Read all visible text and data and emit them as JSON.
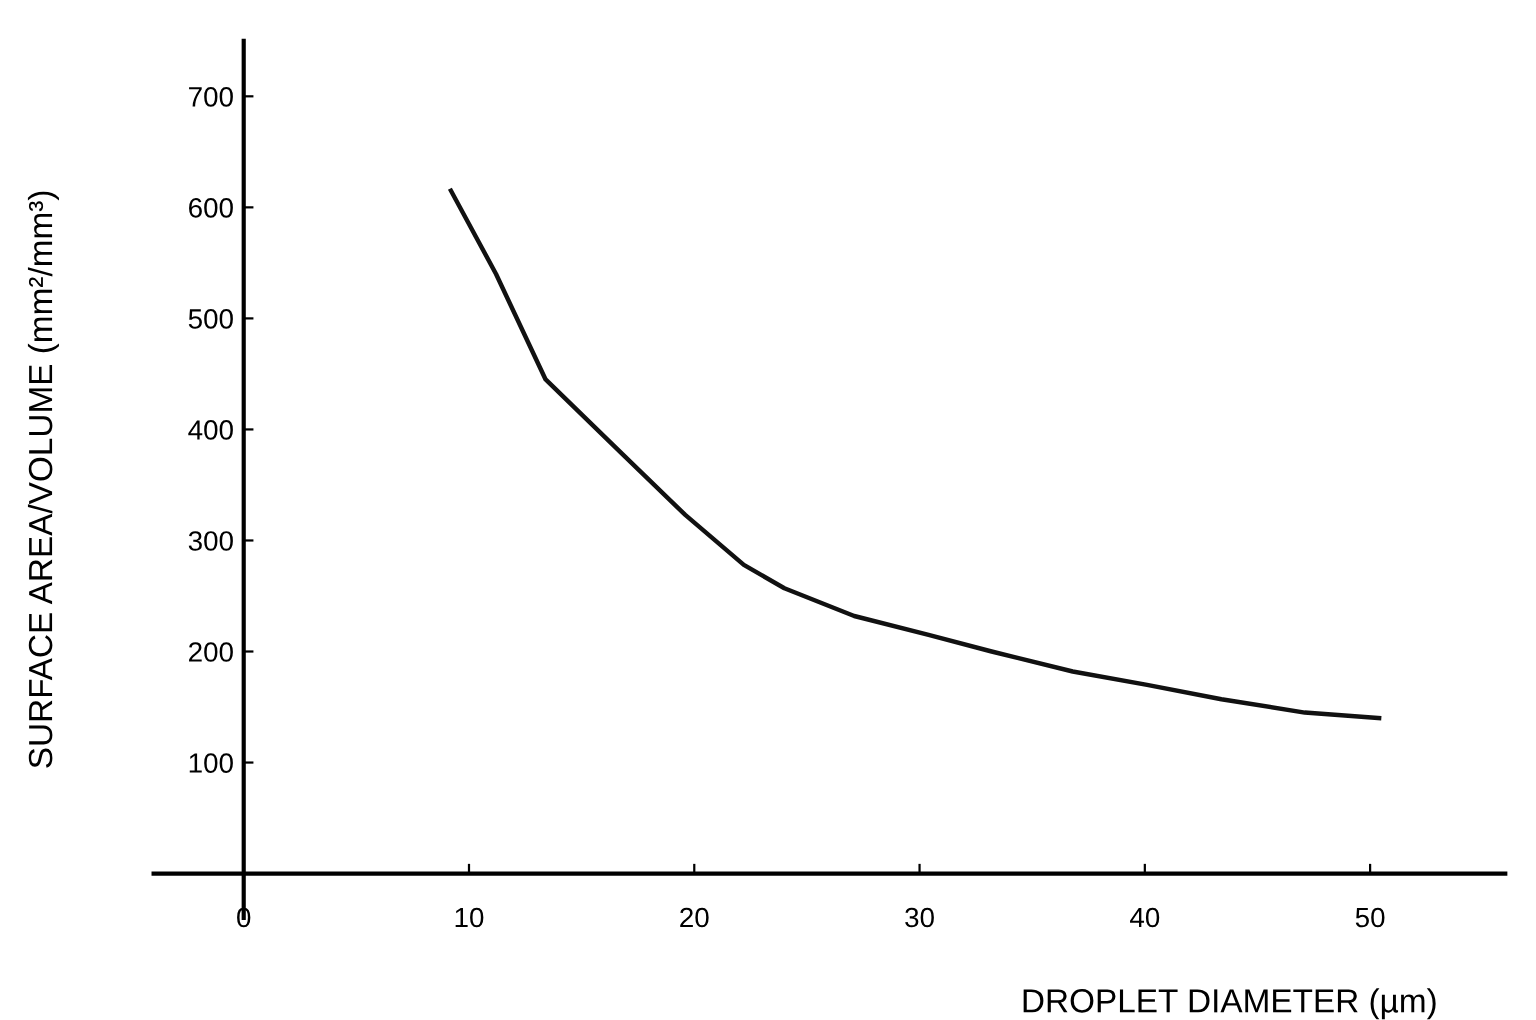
{
  "chart_data": {
    "type": "line",
    "xlabel": "DROPLET DIAMETER (µm)",
    "ylabel": "SURFACE AREA/VOLUME (mm²/mm³)",
    "x": [
      9.2,
      11.2,
      13.4,
      16.8,
      19.6,
      22.2,
      24,
      27.1,
      30.4,
      33.2,
      36.8,
      40.1,
      43.4,
      47.1,
      50.4
    ],
    "series": [
      {
        "color": "#111111",
        "values": [
          615,
          540,
          445,
          378,
          323,
          278,
          257,
          232,
          215,
          200,
          182,
          170,
          157,
          145,
          140
        ]
      }
    ],
    "xlim": [
      -4,
      56
    ],
    "ylim": [
      -40,
      750
    ],
    "xticks": [
      0,
      10,
      20,
      30,
      40,
      50
    ],
    "yticks": [
      100,
      200,
      300,
      400,
      500,
      600,
      700
    ],
    "grid": false,
    "legend": false,
    "marker": "none",
    "line_style": "solid"
  }
}
